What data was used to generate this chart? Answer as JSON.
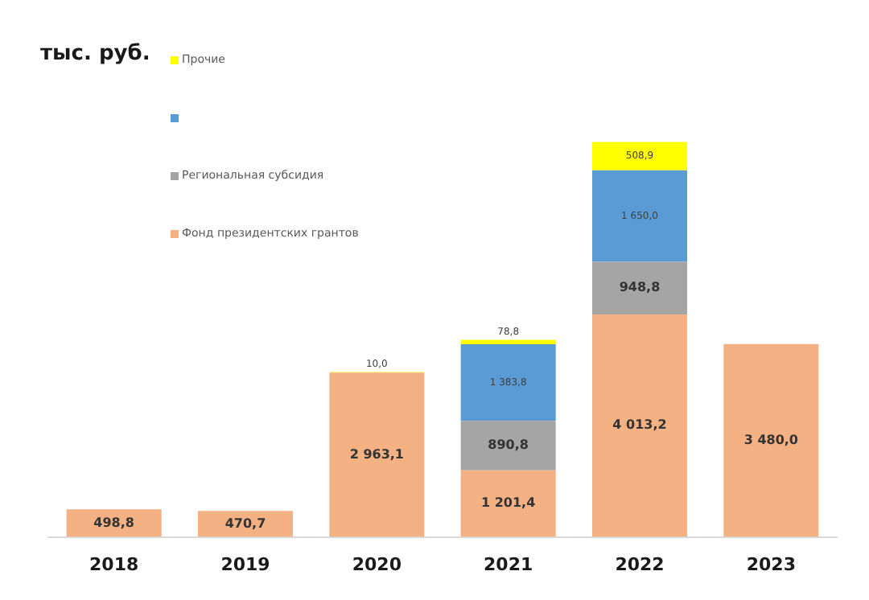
{
  "chart_data": {
    "type": "bar",
    "ylabel": "тыс. руб.",
    "stacked": true,
    "legend": "top left",
    "categories": [
      "2018",
      "2019",
      "2020",
      "2021",
      "2022",
      "2023"
    ],
    "series": [
      {
        "name": "Фонд президентских грантов",
        "color": "#f4b183",
        "values": [
          498.8,
          470.7,
          2963.1,
          1201.4,
          4013.2,
          3480.0
        ],
        "value_labels": [
          "498,8",
          "470,7",
          "2 963,1",
          "1 201,4",
          "4 013,2",
          "3 480,0"
        ]
      },
      {
        "name": "Региональная субсидия",
        "color": "#a5a5a5",
        "values": [
          null,
          null,
          null,
          890.8,
          948.8,
          null
        ],
        "value_labels": [
          null,
          null,
          null,
          "890,8",
          "948,8",
          null
        ]
      },
      {
        "color": "#5b9bd5",
        "values": [
          null,
          null,
          null,
          1383.8,
          1650.0,
          null
        ],
        "value_labels": [
          null,
          null,
          null,
          "1 383,8",
          "1 650,0",
          null
        ]
      },
      {
        "name": "Прочие",
        "color": "#ffff00",
        "values": [
          null,
          null,
          10.0,
          78.8,
          508.9,
          null
        ],
        "value_labels": [
          null,
          null,
          "10,0",
          "78,8",
          "508,9",
          null
        ]
      }
    ]
  }
}
